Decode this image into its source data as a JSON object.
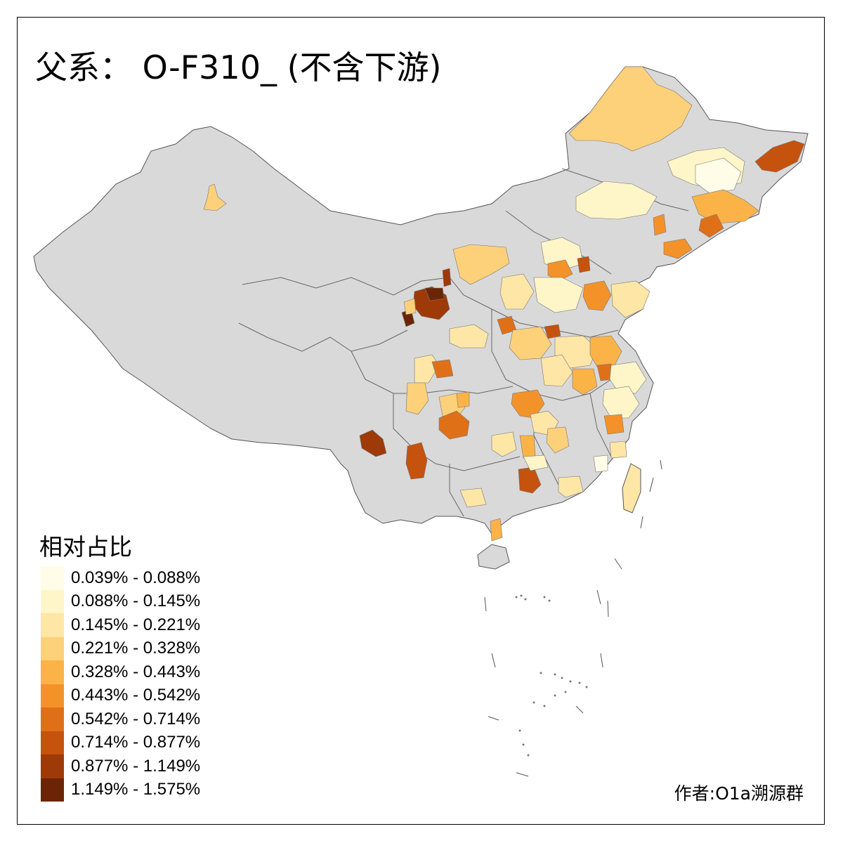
{
  "title": "父系： O-F310_ (不含下游)",
  "legend": {
    "title": "相对占比",
    "items": [
      {
        "label": "0.039% - 0.088%",
        "color": "#FFFDE8"
      },
      {
        "label": "0.088% - 0.145%",
        "color": "#FEF5C8"
      },
      {
        "label": "0.145% - 0.221%",
        "color": "#FEE6A6"
      },
      {
        "label": "0.221% - 0.328%",
        "color": "#FDD07A"
      },
      {
        "label": "0.328% - 0.443%",
        "color": "#FBB347"
      },
      {
        "label": "0.443% - 0.542%",
        "color": "#F4922A"
      },
      {
        "label": "0.542% - 0.714%",
        "color": "#E07018"
      },
      {
        "label": "0.714% - 0.877%",
        "color": "#C5520D"
      },
      {
        "label": "0.877% - 1.149%",
        "color": "#9E3A08"
      },
      {
        "label": "1.149% - 1.575%",
        "color": "#6B2506"
      }
    ]
  },
  "author": "作者:O1a溯源群",
  "colors": {
    "base_land": "#D9D9D9",
    "border": "#555555",
    "frame": "#000000"
  }
}
